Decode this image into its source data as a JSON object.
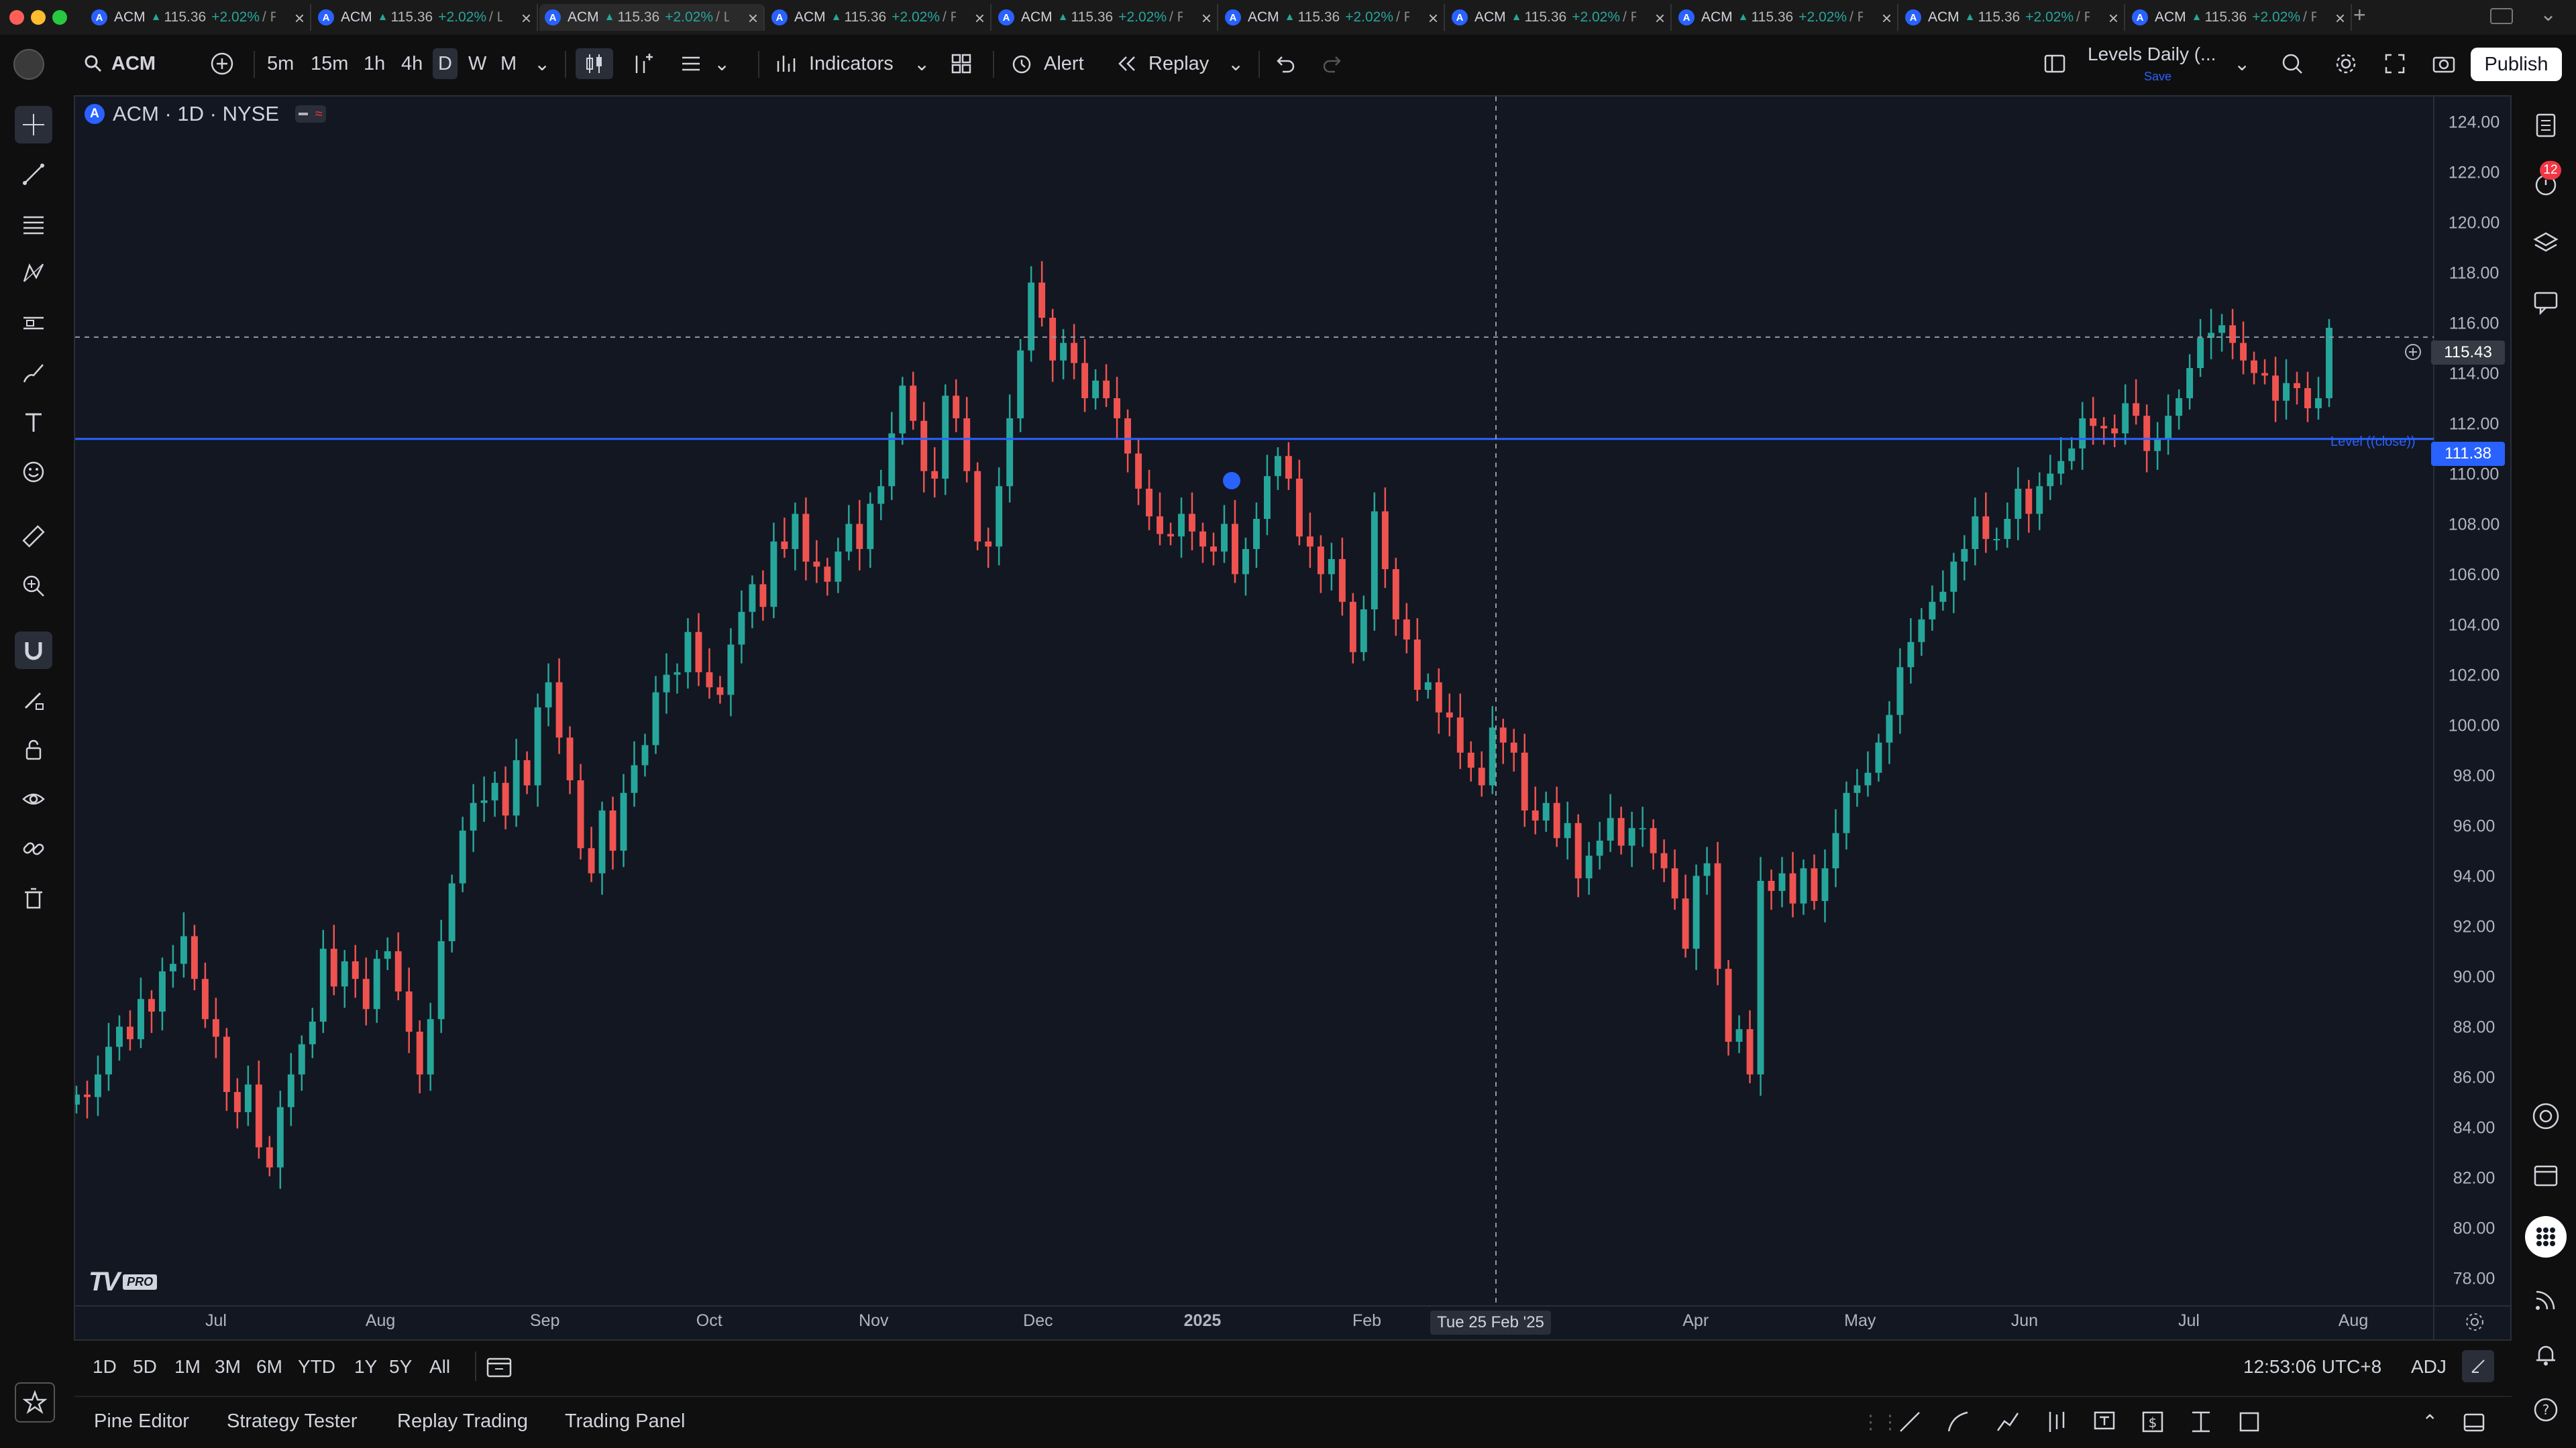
{
  "tabs": [
    {
      "symbol": "ACM",
      "price": "115.36",
      "change": "+2.02%",
      "rest": "/ F",
      "active": false
    },
    {
      "symbol": "ACM",
      "price": "115.36",
      "change": "+2.02%",
      "rest": "/ L",
      "active": false
    },
    {
      "symbol": "ACM",
      "price": "115.36",
      "change": "+2.02%",
      "rest": "/ L",
      "active": true
    },
    {
      "symbol": "ACM",
      "price": "115.36",
      "change": "+2.02%",
      "rest": "/ F",
      "active": false
    },
    {
      "symbol": "ACM",
      "price": "115.36",
      "change": "+2.02%",
      "rest": "/ F",
      "active": false
    },
    {
      "symbol": "ACM",
      "price": "115.36",
      "change": "+2.02%",
      "rest": "/ F",
      "active": false
    },
    {
      "symbol": "ACM",
      "price": "115.36",
      "change": "+2.02%",
      "rest": "/ F",
      "active": false
    },
    {
      "symbol": "ACM",
      "price": "115.36",
      "change": "+2.02%",
      "rest": "/ F",
      "active": false
    },
    {
      "symbol": "ACM",
      "price": "115.36",
      "change": "+2.02%",
      "rest": "/ F",
      "active": false
    },
    {
      "symbol": "ACM",
      "price": "115.36",
      "change": "+2.02%",
      "rest": "/ F",
      "active": false
    }
  ],
  "toolbar": {
    "symbol": "ACM",
    "timeframes": [
      "5m",
      "15m",
      "1h",
      "4h",
      "D",
      "W",
      "M"
    ],
    "active_timeframe": "D",
    "indicators_label": "Indicators",
    "alert_label": "Alert",
    "replay_label": "Replay",
    "layout_name": "Levels Daily (...",
    "layout_save": "Save",
    "publish_label": "Publish"
  },
  "legend": {
    "title": "ACM · 1D · NYSE"
  },
  "colors": {
    "up": "#26a69a",
    "down": "#ef5350",
    "level": "#2962ff",
    "bg": "#131722",
    "accent": "#2962ff"
  },
  "level_label": "Level ((close))",
  "price_tags": {
    "current": "115.43",
    "level": "111.38"
  },
  "crosshair_date": "Tue 25 Feb '25",
  "chart_data": {
    "type": "candlestick",
    "symbol": "ACM",
    "interval": "1D",
    "exchange": "NYSE",
    "ylim": [
      77,
      125
    ],
    "y_ticks": [
      "124.00",
      "122.00",
      "120.00",
      "118.00",
      "116.00",
      "114.00",
      "112.00",
      "110.00",
      "108.00",
      "106.00",
      "104.00",
      "102.00",
      "100.00",
      "98.00",
      "96.00",
      "94.00",
      "92.00",
      "90.00",
      "88.00",
      "86.00",
      "84.00",
      "82.00",
      "80.00",
      "78.00"
    ],
    "x_ticks": [
      "Jul",
      "Aug",
      "Sep",
      "Oct",
      "Nov",
      "Dec",
      "2025",
      "Feb",
      "Mar",
      "Apr",
      "May",
      "Jun",
      "Jul",
      "Aug"
    ],
    "horizontal_level": 111.38,
    "crosshair_price": 115.43,
    "closes": [
      85.3,
      85.2,
      86.1,
      87.2,
      88.0,
      87.5,
      89.1,
      88.6,
      90.2,
      90.5,
      91.6,
      89.9,
      88.3,
      87.6,
      85.4,
      84.6,
      85.7,
      83.2,
      82.4,
      84.8,
      86.1,
      87.3,
      88.2,
      91.1,
      89.6,
      90.6,
      89.9,
      88.7,
      90.7,
      91.0,
      89.4,
      87.8,
      86.1,
      88.3,
      91.4,
      93.7,
      95.8,
      96.9,
      97.0,
      97.7,
      96.4,
      98.6,
      97.6,
      100.7,
      101.7,
      99.5,
      97.8,
      95.1,
      94.1,
      96.6,
      95.0,
      97.3,
      98.4,
      99.2,
      101.3,
      102.0,
      102.1,
      103.7,
      102.1,
      101.5,
      101.2,
      103.2,
      104.5,
      105.6,
      104.7,
      107.3,
      107.0,
      108.4,
      106.5,
      106.3,
      105.7,
      106.9,
      108.0,
      107.0,
      108.8,
      109.5,
      111.6,
      113.5,
      112.1,
      110.1,
      109.8,
      113.1,
      112.2,
      110.1,
      107.3,
      107.1,
      109.5,
      112.2,
      114.9,
      117.6,
      116.2,
      114.5,
      115.2,
      114.4,
      113.0,
      113.7,
      113.0,
      112.2,
      110.8,
      109.4,
      108.3,
      107.6,
      107.5,
      108.4,
      107.7,
      107.1,
      106.9,
      108.0,
      106.0,
      107.0,
      108.2,
      109.9,
      110.7,
      109.8,
      107.5,
      107.1,
      106.0,
      106.6,
      104.9,
      102.9,
      104.6,
      108.5,
      106.2,
      104.2,
      103.4,
      101.4,
      101.7,
      100.5,
      100.3,
      98.9,
      98.3,
      97.6,
      99.9,
      99.3,
      98.9,
      96.6,
      96.2,
      96.9,
      95.5,
      96.1,
      93.9,
      94.8,
      95.4,
      96.3,
      95.2,
      95.9,
      95.9,
      94.9,
      94.3,
      93.1,
      91.1,
      94.0,
      94.5,
      90.3,
      87.4,
      87.9,
      86.1,
      93.8,
      93.4,
      94.1,
      92.9,
      94.3,
      93.0,
      94.3,
      95.7,
      97.3,
      97.6,
      98.1,
      99.3,
      100.4,
      102.3,
      103.3,
      104.2,
      104.9,
      105.3,
      106.5,
      107.0,
      108.3,
      107.4,
      107.4,
      108.2,
      109.4,
      108.4,
      109.5,
      110.0,
      110.5,
      111.0,
      112.2,
      111.9,
      111.8,
      111.6,
      112.8,
      112.3,
      110.9,
      111.4,
      112.3,
      113.0,
      114.2,
      115.4,
      115.6,
      115.9,
      115.2,
      114.5,
      114.0,
      113.9,
      112.9,
      113.6,
      113.4,
      112.6,
      113.0,
      115.8
    ]
  },
  "range_buttons": [
    "1D",
    "5D",
    "1M",
    "3M",
    "6M",
    "YTD",
    "1Y",
    "5Y",
    "All"
  ],
  "status": {
    "time": "12:53:06 UTC+8",
    "adj": "ADJ"
  },
  "bottom_tabs": [
    "Pine Editor",
    "Strategy Tester",
    "Replay Trading",
    "Trading Panel"
  ],
  "notifications": {
    "count": "12"
  }
}
